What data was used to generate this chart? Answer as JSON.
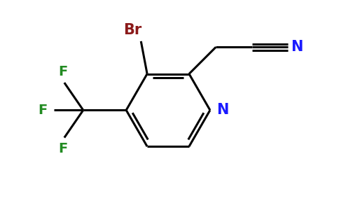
{
  "background_color": "#ffffff",
  "bond_color": "#000000",
  "bond_width": 2.2,
  "colors": {
    "Br": "#8b1a1a",
    "N_ring": "#1a1aff",
    "N_nitrile": "#1a1aff",
    "F": "#228b22",
    "C": "#000000"
  },
  "figsize": [
    4.84,
    3.0
  ],
  "dpi": 100,
  "xlim": [
    0,
    9.68
  ],
  "ylim": [
    0,
    6.0
  ]
}
